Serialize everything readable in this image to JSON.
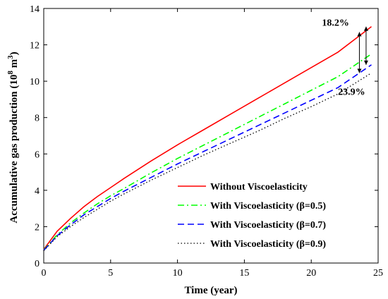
{
  "chart_data": {
    "type": "line",
    "xlabel": "Time (year)",
    "ylabel_main": "Accumulative gas production (10",
    "ylabel_sup": "8",
    "ylabel_unit": " m",
    "ylabel_sup2": "3",
    "ylabel_close": ")",
    "xlim": [
      0,
      25
    ],
    "ylim": [
      0,
      14
    ],
    "xticks": [
      "0",
      "5",
      "10",
      "15",
      "20",
      "25"
    ],
    "yticks": [
      "0",
      "2",
      "4",
      "6",
      "8",
      "10",
      "12",
      "14"
    ],
    "grid": false,
    "legend_position": "bottom-right",
    "series": [
      {
        "name": "Without Viscoelasticity",
        "color": "#ff0000",
        "dash": "solid",
        "x": [
          0,
          1,
          2,
          3,
          4,
          5,
          6,
          8,
          10,
          12,
          14,
          16,
          18,
          20,
          22,
          24.5
        ],
        "y": [
          0.75,
          1.75,
          2.45,
          3.1,
          3.65,
          4.15,
          4.65,
          5.6,
          6.5,
          7.35,
          8.2,
          9.05,
          9.9,
          10.75,
          11.6,
          13.0
        ]
      },
      {
        "name": "With Viscoelasticity (β=0.5)",
        "color": "#00ff00",
        "dash": "dashdot",
        "x": [
          0,
          1,
          2,
          3,
          4,
          5,
          6,
          8,
          10,
          12,
          14,
          16,
          18,
          20,
          22,
          24.5
        ],
        "y": [
          0.72,
          1.55,
          2.2,
          2.75,
          3.25,
          3.7,
          4.1,
          4.95,
          5.75,
          6.5,
          7.25,
          8.0,
          8.75,
          9.5,
          10.25,
          11.5
        ]
      },
      {
        "name": "With Viscoelasticity (β=0.7)",
        "color": "#0000ff",
        "dash": "dashed",
        "x": [
          0,
          1,
          2,
          3,
          4,
          5,
          6,
          8,
          10,
          12,
          14,
          16,
          18,
          20,
          22,
          24.5
        ],
        "y": [
          0.7,
          1.5,
          2.1,
          2.65,
          3.1,
          3.55,
          3.95,
          4.7,
          5.45,
          6.15,
          6.85,
          7.55,
          8.25,
          8.95,
          9.65,
          10.9
        ]
      },
      {
        "name": "With Viscoelasticity (β=0.9)",
        "color": "#000000",
        "dash": "dotted",
        "x": [
          0,
          1,
          2,
          3,
          4,
          5,
          6,
          8,
          10,
          12,
          14,
          16,
          18,
          20,
          22,
          24.5
        ],
        "y": [
          0.68,
          1.45,
          2.0,
          2.5,
          2.95,
          3.4,
          3.8,
          4.55,
          5.25,
          5.95,
          6.6,
          7.25,
          7.95,
          8.6,
          9.3,
          10.45
        ]
      }
    ],
    "annotations": [
      {
        "text": "18.2%",
        "x": 20.8,
        "y": 13.05
      },
      {
        "text": "23.9%",
        "x": 22.0,
        "y": 9.25
      }
    ],
    "arrows": [
      {
        "x": 24.1,
        "y1": 13.0,
        "y2": 10.9
      },
      {
        "x": 23.6,
        "y1": 12.7,
        "y2": 10.45
      }
    ]
  }
}
